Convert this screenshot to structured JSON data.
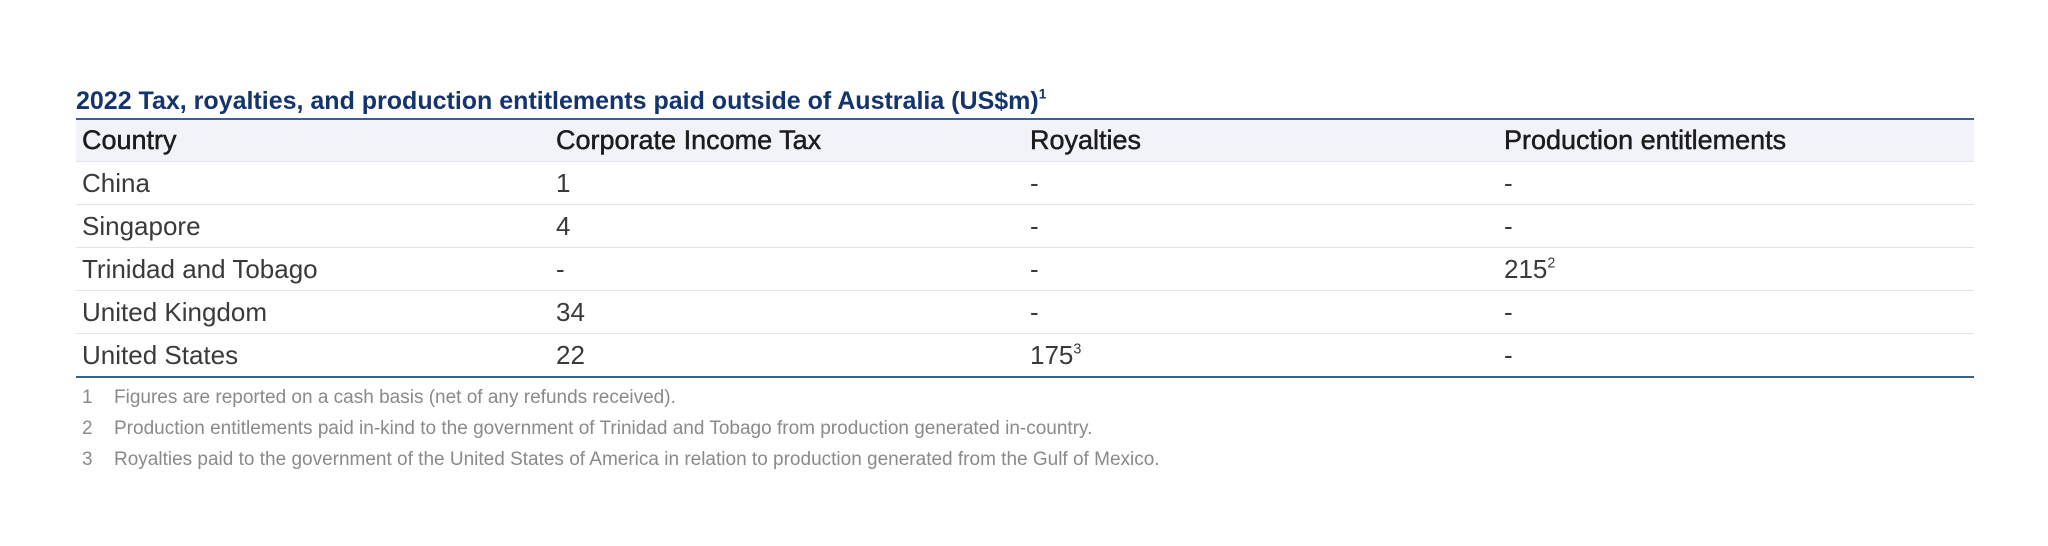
{
  "title": {
    "text": "2022 Tax, royalties, and production entitlements paid outside of Australia (US$m)",
    "footnote_ref": "1"
  },
  "table": {
    "headers": [
      "Country",
      "Corporate Income Tax",
      "Royalties",
      "Production entitlements"
    ],
    "rows": [
      {
        "country": "China",
        "corporate_income_tax": "1",
        "royalties": "-",
        "royalties_note": "",
        "production_entitlements": "-",
        "production_entitlements_note": ""
      },
      {
        "country": "Singapore",
        "corporate_income_tax": "4",
        "royalties": "-",
        "royalties_note": "",
        "production_entitlements": "-",
        "production_entitlements_note": ""
      },
      {
        "country": "Trinidad and Tobago",
        "corporate_income_tax": "-",
        "royalties": "-",
        "royalties_note": "",
        "production_entitlements": "215",
        "production_entitlements_note": "2"
      },
      {
        "country": "United Kingdom",
        "corporate_income_tax": "34",
        "royalties": "-",
        "royalties_note": "",
        "production_entitlements": "-",
        "production_entitlements_note": ""
      },
      {
        "country": "United States",
        "corporate_income_tax": "22",
        "royalties": "175",
        "royalties_note": "3",
        "production_entitlements": "-",
        "production_entitlements_note": ""
      }
    ]
  },
  "footnotes": [
    {
      "num": "1",
      "text": "Figures are reported on a cash basis (net of any refunds received)."
    },
    {
      "num": "2",
      "text": "Production entitlements paid in-kind to the government of Trinidad and Tobago from production generated in-country."
    },
    {
      "num": "3",
      "text": "Royalties paid to the government of the United States of America in relation to production generated from the Gulf of Mexico."
    }
  ],
  "colors": {
    "title": "#14346e",
    "rule": "#3d5f94",
    "header_bg": "#f1f3f8",
    "footnote_text": "#8a8a8a"
  }
}
